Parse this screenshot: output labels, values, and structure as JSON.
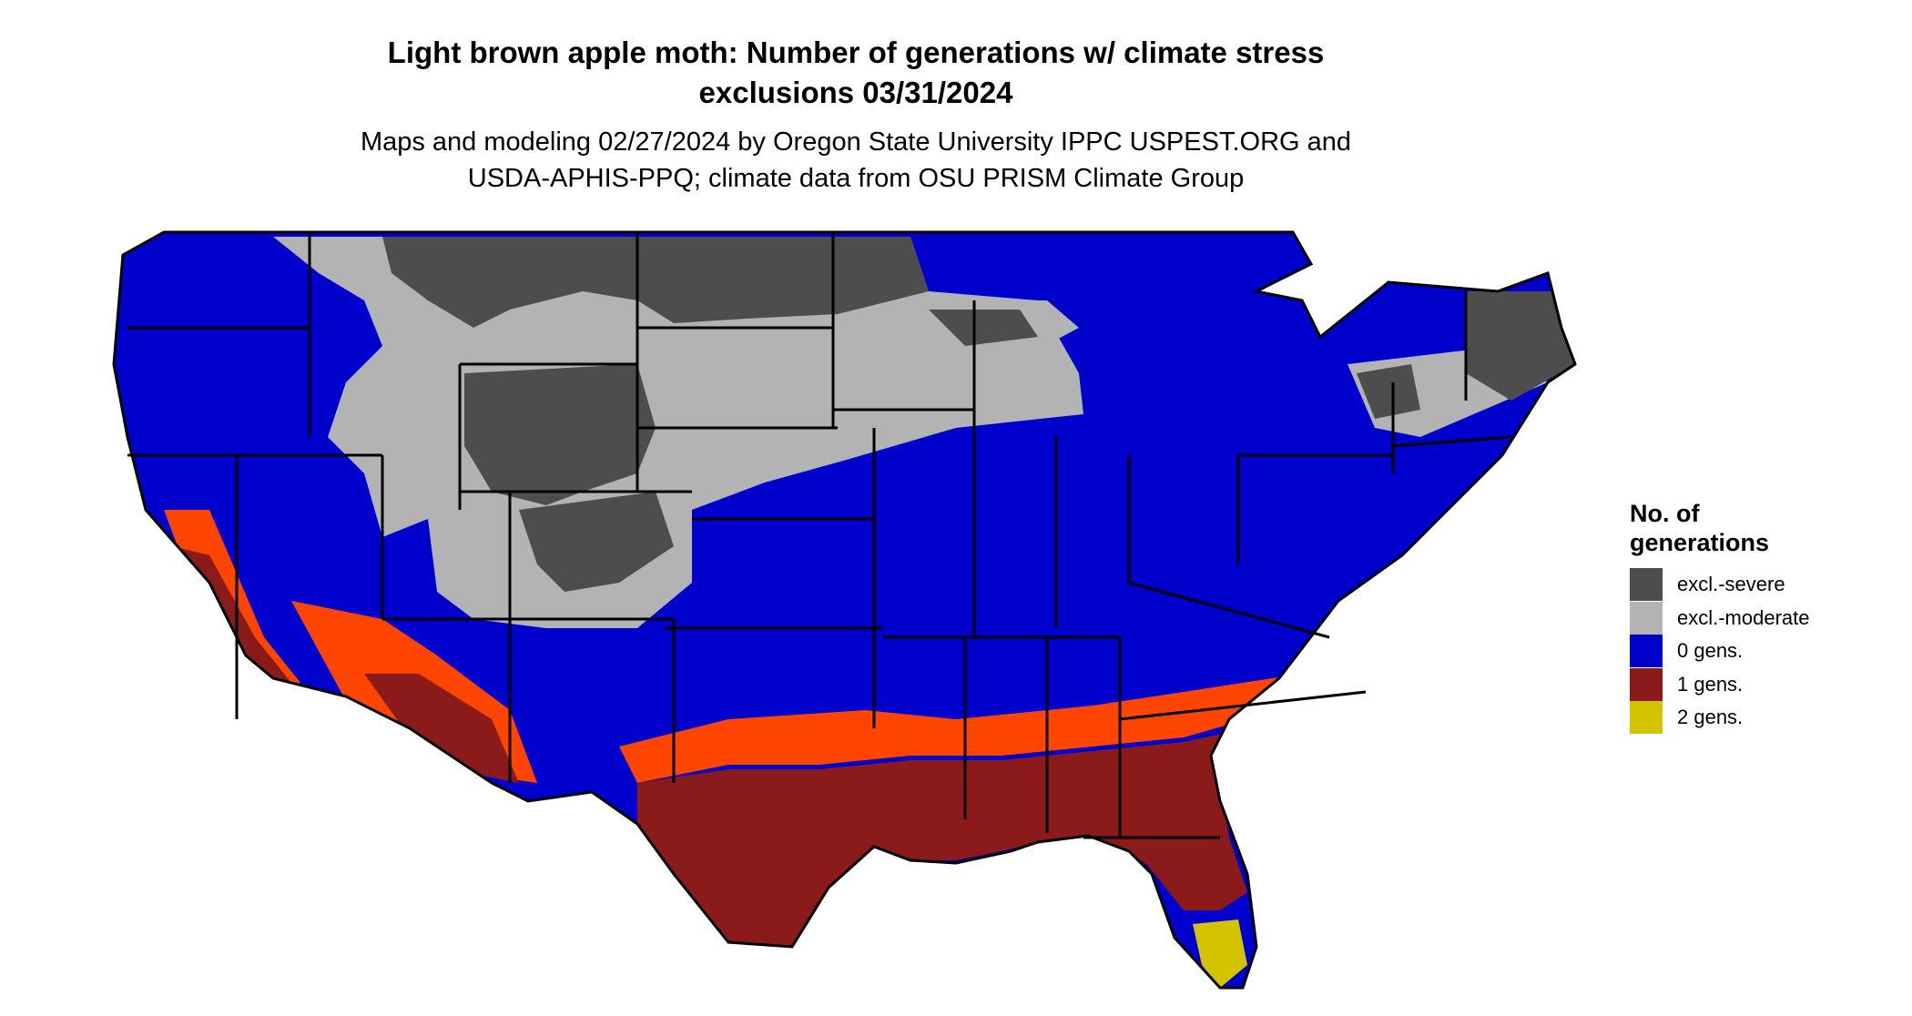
{
  "title": {
    "line1": "Light brown apple moth: Number of generations w/ climate stress",
    "line2": "exclusions 03/31/2024"
  },
  "subtitle": {
    "line1": "Maps and modeling 02/27/2024 by Oregon State University IPPC USPEST.ORG and",
    "line2": "USDA-APHIS-PPQ; climate data from OSU PRISM Climate Group"
  },
  "legend": {
    "title_line1": "No. of",
    "title_line2": "generations",
    "items": [
      {
        "label": "excl.-severe",
        "color": "#4d4d4d"
      },
      {
        "label": "excl.-moderate",
        "color": "#b3b3b3"
      },
      {
        "label": "0 gens.",
        "color": "#0000cc"
      },
      {
        "label": "1 gens.",
        "color": "#8b1a1a"
      },
      {
        "label": "2 gens.",
        "color": "#d4c400"
      }
    ]
  },
  "map_colors": {
    "excl_severe": "#4d4d4d",
    "excl_moderate": "#b3b3b3",
    "zero_gens": "#0000cc",
    "one_gens": "#8b1a1a",
    "one_gens_fringe": "#ff4500",
    "two_gens": "#d4c400",
    "border": "#000000"
  }
}
